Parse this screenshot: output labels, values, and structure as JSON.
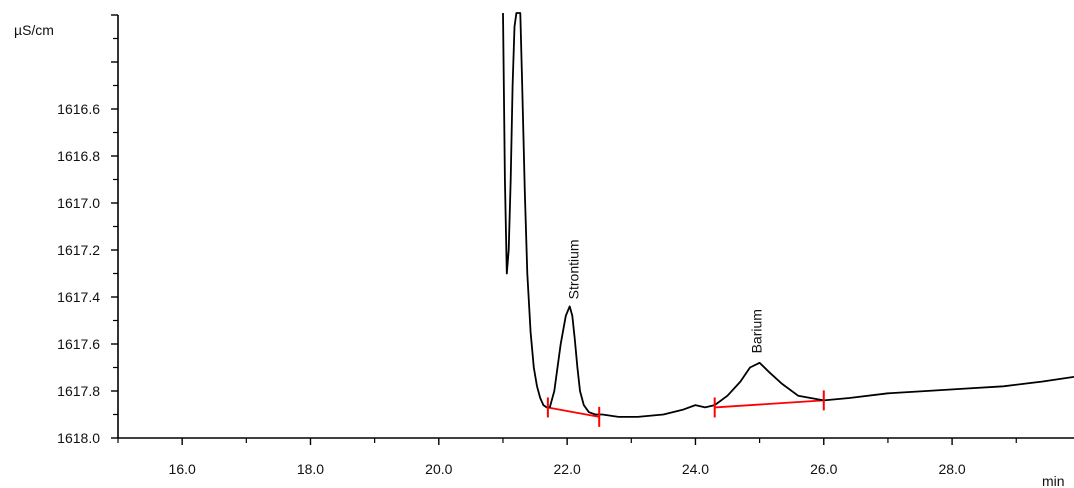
{
  "chart_data": {
    "type": "line",
    "title": "",
    "xlabel": "",
    "ylabel": "",
    "x_unit": "min",
    "y_unit": "µS/cm",
    "xlim": [
      15.0,
      29.9
    ],
    "ylim": [
      1618.0,
      1616.2
    ],
    "y_inverted": true,
    "grid": false,
    "x_ticks": [
      16.0,
      18.0,
      20.0,
      22.0,
      24.0,
      26.0,
      28.0
    ],
    "x_tick_labels": [
      "16.0",
      "18.0",
      "20.0",
      "22.0",
      "24.0",
      "26.0",
      "28.0"
    ],
    "y_ticks": [
      1616.6,
      1616.8,
      1617.0,
      1617.2,
      1617.4,
      1617.6,
      1617.8,
      1618.0
    ],
    "y_tick_labels": [
      "1616.6",
      "1616.8",
      "1617.0",
      "1617.2",
      "1617.4",
      "1617.6",
      "1617.8",
      "1618.0"
    ],
    "series": [
      {
        "color": "#000000",
        "x": [
          21.0,
          21.03,
          21.06,
          21.09,
          21.12,
          21.15,
          21.18,
          21.21,
          21.24,
          21.27,
          21.3,
          21.34,
          21.38,
          21.43,
          21.48,
          21.53,
          21.58,
          21.63,
          21.68,
          21.73,
          21.8,
          21.9,
          21.98,
          22.04,
          22.08,
          22.12,
          22.16,
          22.2,
          22.26,
          22.34,
          22.44,
          22.55,
          22.8,
          23.1,
          23.5,
          23.8,
          24.0,
          24.15,
          24.3,
          24.5,
          24.7,
          24.85,
          25.0,
          25.15,
          25.35,
          25.6,
          26.0,
          26.4,
          27.0,
          27.6,
          28.2,
          28.8,
          29.4,
          29.9
        ],
        "y": [
          1616.0,
          1616.9,
          1617.3,
          1617.2,
          1616.9,
          1616.5,
          1616.25,
          1616.12,
          1616.1,
          1616.15,
          1616.5,
          1616.95,
          1617.3,
          1617.55,
          1617.7,
          1617.78,
          1617.83,
          1617.86,
          1617.87,
          1617.87,
          1617.8,
          1617.6,
          1617.48,
          1617.44,
          1617.48,
          1617.58,
          1617.7,
          1617.8,
          1617.86,
          1617.89,
          1617.9,
          1617.9,
          1617.91,
          1617.91,
          1617.9,
          1617.88,
          1617.86,
          1617.87,
          1617.86,
          1617.82,
          1617.76,
          1617.7,
          1617.68,
          1617.72,
          1617.77,
          1617.82,
          1617.84,
          1617.83,
          1617.81,
          1617.8,
          1617.79,
          1617.78,
          1617.76,
          1617.74
        ]
      }
    ],
    "baselines": [
      {
        "x": [
          21.7,
          22.5
        ],
        "y": [
          1617.87,
          1617.91
        ],
        "color": "#ff0000"
      },
      {
        "x": [
          24.3,
          26.0
        ],
        "y": [
          1617.87,
          1617.84
        ],
        "color": "#ff0000"
      }
    ],
    "peak_markers": [
      21.7,
      22.5,
      24.3,
      26.0
    ],
    "annotations": [
      {
        "text": "Strontium",
        "x": 22.1,
        "y": 1617.41
      },
      {
        "text": "Barium",
        "x": 24.95,
        "y": 1617.64
      }
    ]
  }
}
